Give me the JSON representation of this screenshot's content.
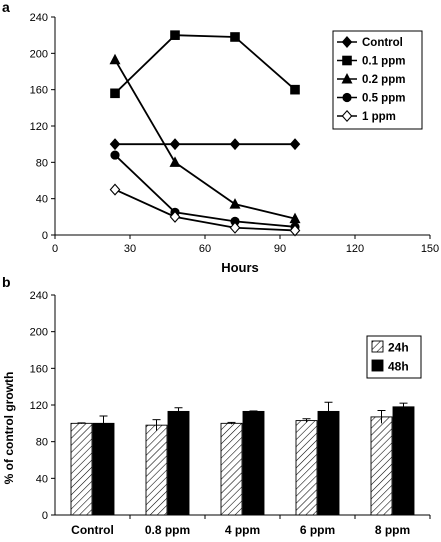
{
  "chart_data": [
    {
      "panel_label": "a",
      "type": "line",
      "xlabel": "Hours",
      "ylabel": "",
      "xlim": [
        0,
        150
      ],
      "ylim": [
        0,
        240
      ],
      "xticks": [
        "0",
        "30",
        "60",
        "90",
        "120",
        "150"
      ],
      "yticks": [
        "0",
        "40",
        "80",
        "120",
        "160",
        "200",
        "240"
      ],
      "grid": false,
      "legend_position": "top-right",
      "series": [
        {
          "name": "Control",
          "marker": "diamond-filled",
          "x": [
            24,
            48,
            72,
            96
          ],
          "y": [
            100,
            100,
            100,
            100
          ]
        },
        {
          "name": "0.1 ppm",
          "marker": "square-filled",
          "x": [
            24,
            48,
            72,
            96
          ],
          "y": [
            156,
            220,
            218,
            160
          ]
        },
        {
          "name": "0.2 ppm",
          "marker": "triangle-filled",
          "x": [
            24,
            48,
            72,
            96
          ],
          "y": [
            193,
            80,
            34,
            18
          ]
        },
        {
          "name": "0.5 ppm",
          "marker": "circle-filled",
          "x": [
            24,
            48,
            72,
            96
          ],
          "y": [
            88,
            25,
            15,
            9
          ]
        },
        {
          "name": "1 ppm",
          "marker": "diamond-open",
          "x": [
            24,
            48,
            72,
            96
          ],
          "y": [
            50,
            20,
            8,
            5
          ]
        }
      ]
    },
    {
      "panel_label": "b",
      "type": "bar",
      "xlabel": "",
      "ylabel": "% of control growth",
      "ylim": [
        0,
        240
      ],
      "yticks": [
        "0",
        "40",
        "80",
        "120",
        "160",
        "200",
        "240"
      ],
      "grid": false,
      "legend_position": "top-right",
      "categories": [
        "Control",
        "0.8 ppm",
        "4 ppm",
        "6 ppm",
        "8 ppm"
      ],
      "series": [
        {
          "name": "24h",
          "pattern": "hatched",
          "values": [
            100,
            98,
            100,
            103,
            107
          ],
          "errors": [
            0.5,
            6,
            1,
            2,
            7
          ]
        },
        {
          "name": "48h",
          "pattern": "solid-black",
          "values": [
            100,
            113,
            113,
            113,
            118
          ],
          "errors": [
            8,
            4,
            0.5,
            10,
            4
          ]
        }
      ]
    }
  ]
}
